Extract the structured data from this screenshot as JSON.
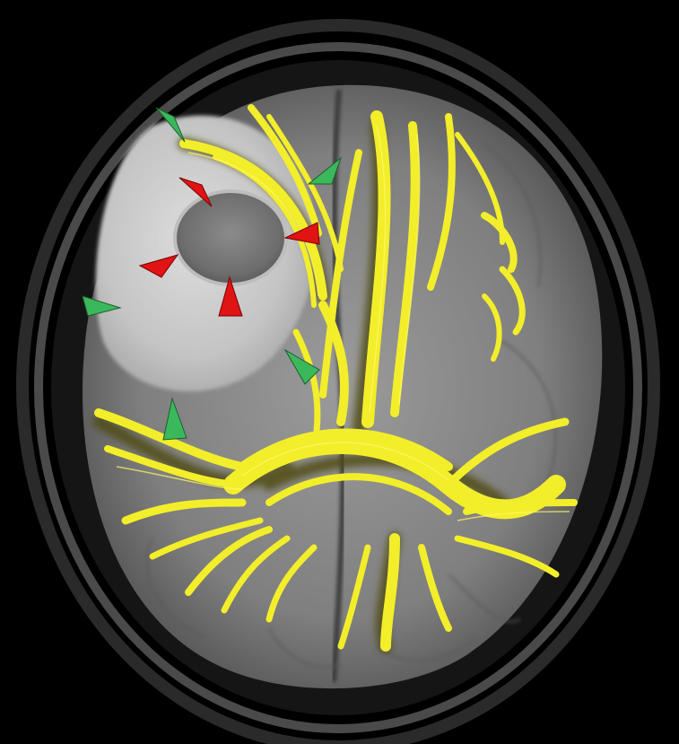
{
  "image": {
    "background_color": "#000000",
    "tract_color": "#f3ee2a",
    "tract_shadow_color": "#5a5510",
    "lesion_color": "#7a7a7a",
    "edema_color": "#cfcfcf",
    "brain_gray": "#8a8a8a",
    "skull_ring_color": "#3b3b3b",
    "arrow_colors": {
      "red": "#e01414",
      "green": "#3cb85c"
    },
    "arrow_counts": {
      "red": 4,
      "green": 5
    },
    "markers": {
      "red": [
        "red-arrowhead",
        "red-arrowhead",
        "red-arrowhead",
        "red-arrowhead"
      ],
      "green": [
        "green-arrowhead",
        "green-arrowhead",
        "green-arrowhead",
        "green-arrowhead",
        "green-arrowhead"
      ]
    }
  }
}
